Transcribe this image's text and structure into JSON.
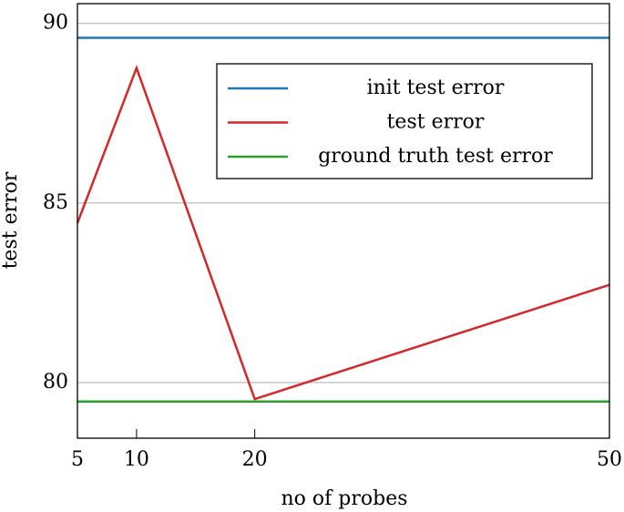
{
  "chart_data": {
    "type": "line",
    "x_label": "no of probes",
    "y_label": "test error",
    "x": [
      5,
      10,
      20,
      50
    ],
    "series": [
      {
        "name": "init test error",
        "color": "#1f77b4",
        "values": [
          89.6,
          89.6,
          89.6,
          89.6
        ]
      },
      {
        "name": "test error",
        "color": "#d62728",
        "values": [
          84.44,
          88.76,
          79.54,
          82.72
        ]
      },
      {
        "name": "ground truth test error",
        "color": "#2ca02c",
        "values": [
          79.47,
          79.47,
          79.47,
          79.47
        ]
      }
    ],
    "xlim": [
      5,
      50
    ],
    "xticks": [
      5,
      10,
      20,
      50
    ],
    "ylim": [
      78.45,
      90.55
    ],
    "yticks": [
      80,
      85,
      90
    ],
    "grid": true,
    "legend": "upper right"
  }
}
